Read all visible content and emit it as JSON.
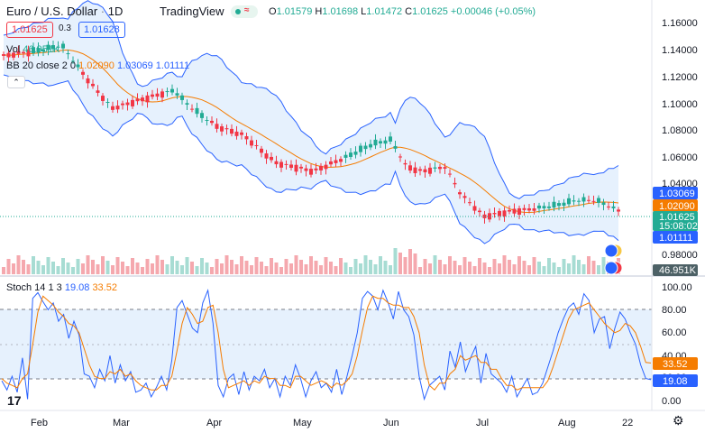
{
  "header": {
    "symbol": "Euro / U.S. Dollar",
    "separator": "·",
    "interval": "1D",
    "brand": "TradingView",
    "ohlc": {
      "o_label": "O",
      "o_value": "1.01579",
      "h_label": "H",
      "h_value": "1.01698",
      "l_label": "L",
      "l_value": "1.01472",
      "c_label": "C",
      "c_value": "1.01625",
      "change": "+0.00046 (+0.05%)"
    },
    "sell_price": "1.01625",
    "spread": "0.3",
    "buy_price": "1.01628"
  },
  "indicators": {
    "volume": {
      "label": "Vol",
      "value": "46.951K"
    },
    "bb": {
      "label": "BB 20 close 2 0",
      "basis": "1.02090",
      "upper": "1.03069",
      "lower": "1.01111"
    },
    "stoch": {
      "label": "Stoch 14 1 3",
      "k": "19.08",
      "d": "33.52"
    }
  },
  "colors": {
    "up": "#22ab94",
    "down": "#f23645",
    "bb_band": "#2962ff",
    "bb_fill": "#e3effd",
    "bb_basis": "#f57c00",
    "stoch_k": "#2962ff",
    "stoch_d": "#f57c00"
  },
  "icons": {
    "logo": "tradingview-logo-icon",
    "settings": "gear-icon",
    "collapse": "chevron-up-icon"
  },
  "price_axis": {
    "ticks": [
      "1.16000",
      "1.14000",
      "1.12000",
      "1.10000",
      "1.08000",
      "1.06000",
      "1.04000",
      "1.00000",
      "0.98000"
    ],
    "labels": {
      "bb_upper": "1.03069",
      "bb_basis": "1.02090",
      "last": "1.01625",
      "countdown": "15:08:02",
      "bb_lower": "1.01111",
      "volume": "46.951K"
    }
  },
  "stoch_axis": {
    "ticks": [
      "100.00",
      "80.00",
      "60.00",
      "40.00",
      "20.00",
      "0.00"
    ],
    "labels": {
      "d": "33.52",
      "k": "19.08"
    }
  },
  "time_axis": {
    "ticks": [
      "Feb",
      "Mar",
      "Apr",
      "May",
      "Jun",
      "Jul",
      "Aug",
      "22"
    ]
  },
  "chart_data": {
    "type": "candlestick",
    "series_k": [
      18,
      10,
      22,
      8,
      38,
      2,
      90,
      95,
      87,
      80,
      86,
      70,
      76,
      55,
      70,
      58,
      24,
      22,
      12,
      28,
      18,
      40,
      16,
      32,
      18,
      26,
      8,
      10,
      16,
      4,
      12,
      22,
      10,
      36,
      82,
      88,
      76,
      64,
      60,
      86,
      97,
      68,
      14,
      4,
      20,
      24,
      6,
      26,
      10,
      22,
      18,
      28,
      12,
      20,
      4,
      22,
      14,
      32,
      20,
      4,
      18,
      26,
      12,
      16,
      8,
      28,
      6,
      22,
      40,
      60,
      90,
      96,
      92,
      80,
      97,
      86,
      72,
      96,
      80,
      74,
      58,
      22,
      2,
      14,
      18,
      22,
      10,
      44,
      30,
      52,
      26,
      38,
      48,
      16,
      42,
      24,
      20,
      16,
      8,
      22,
      4,
      12,
      20,
      6,
      8,
      16,
      30,
      44,
      60,
      72,
      82,
      86,
      76,
      94,
      88,
      60,
      72,
      74,
      46,
      64,
      78,
      72,
      60,
      50,
      32,
      20,
      19
    ],
    "series_d": [
      20,
      16,
      14,
      12,
      20,
      24,
      50,
      78,
      92,
      88,
      84,
      78,
      74,
      68,
      66,
      60,
      46,
      32,
      22,
      20,
      20,
      26,
      24,
      28,
      22,
      24,
      18,
      14,
      12,
      10,
      10,
      14,
      14,
      22,
      44,
      68,
      82,
      76,
      68,
      70,
      82,
      84,
      60,
      28,
      12,
      14,
      16,
      18,
      14,
      18,
      16,
      22,
      20,
      20,
      14,
      14,
      12,
      22,
      22,
      18,
      14,
      16,
      18,
      16,
      12,
      16,
      14,
      18,
      24,
      40,
      62,
      82,
      92,
      90,
      90,
      86,
      84,
      84,
      82,
      82,
      74,
      60,
      32,
      14,
      10,
      16,
      16,
      24,
      28,
      40,
      36,
      38,
      40,
      34,
      34,
      28,
      28,
      20,
      14,
      14,
      10,
      12,
      12,
      12,
      12,
      12,
      18,
      30,
      44,
      58,
      72,
      80,
      82,
      84,
      86,
      80,
      74,
      68,
      64,
      60,
      62,
      68,
      66,
      60,
      48,
      34,
      33.52
    ]
  }
}
